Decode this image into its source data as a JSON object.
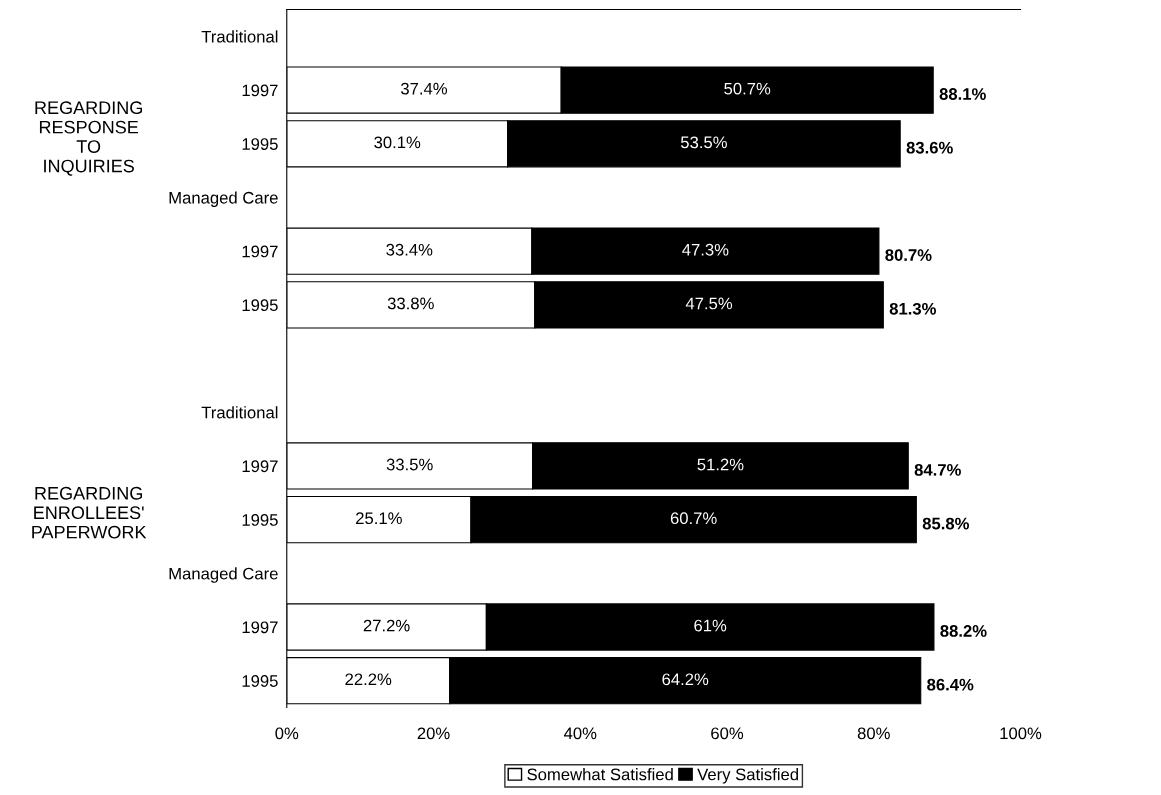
{
  "chart_data": {
    "type": "bar",
    "orientation": "horizontal",
    "stacked": true,
    "categories": [
      "Traditional",
      "1997",
      "1995",
      "Managed Care",
      "1997",
      "1995",
      null,
      "Traditional",
      "1997",
      "1995",
      "Managed Care",
      "1997",
      "1995"
    ],
    "series": [
      {
        "name": "Somewhat Satisfied",
        "color": "#ffffff",
        "values": [
          null,
          37.4,
          30.1,
          null,
          33.4,
          33.8,
          null,
          null,
          33.5,
          25.1,
          null,
          27.2,
          22.2
        ],
        "value_labels": [
          null,
          "37.4%",
          "30.1%",
          null,
          "33.4%",
          "33.8%",
          null,
          null,
          "33.5%",
          "25.1%",
          null,
          "27.2%",
          "22.2%"
        ]
      },
      {
        "name": "Very Satisfied",
        "color": "#000000",
        "values": [
          null,
          50.7,
          53.5,
          null,
          47.3,
          47.5,
          null,
          null,
          51.2,
          60.7,
          null,
          61,
          64.2
        ],
        "value_labels": [
          null,
          "50.7%",
          "53.5%",
          null,
          "47.3%",
          "47.5%",
          null,
          null,
          "51.2%",
          "60.7%",
          null,
          "61%",
          "64.2%"
        ]
      }
    ],
    "totals": [
      null,
      "88.1%",
      "83.6%",
      null,
      "80.7%",
      "81.3%",
      null,
      null,
      "84.7%",
      "85.8%",
      null,
      "88.2%",
      "86.4%"
    ],
    "xlim": [
      0,
      100
    ],
    "xticks": [
      {
        "value": 0,
        "label": "0%"
      },
      {
        "value": 20,
        "label": "20%"
      },
      {
        "value": 40,
        "label": "40%"
      },
      {
        "value": 60,
        "label": "60%"
      },
      {
        "value": 80,
        "label": "80%"
      },
      {
        "value": 100,
        "label": "100%"
      }
    ],
    "annotations": [
      "REGARDING\nRESPONSE\nTO\nINQUIRIES",
      "REGARDING\nENROLLEES'\nPAPERWORK"
    ],
    "legend": "bottom",
    "grid": false
  }
}
